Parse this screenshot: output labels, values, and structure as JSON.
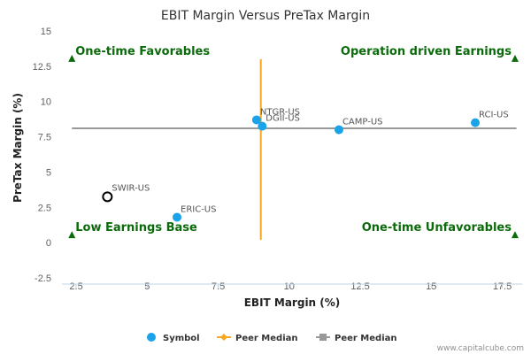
{
  "chart_data": {
    "type": "scatter",
    "title": "EBIT Margin Versus PreTax Margin",
    "xlabel": "EBIT Margin (%)",
    "ylabel": "PreTax Margin (%)",
    "xlim": [
      2.0,
      18.2
    ],
    "ylim": [
      -2.5,
      15
    ],
    "xticks": [
      "2.5",
      "5",
      "7.5",
      "10",
      "12.5",
      "15",
      "17.5"
    ],
    "yticks": [
      "-2.5",
      "0",
      "2.5",
      "5",
      "7.5",
      "10",
      "12.5",
      "15"
    ],
    "grid": false,
    "series": [
      {
        "name": "Symbol",
        "color": "#1aa3e8",
        "points": [
          {
            "label": "NTGR-US",
            "x": 8.85,
            "y": 8.7
          },
          {
            "label": "DGII-US",
            "x": 9.05,
            "y": 8.25
          },
          {
            "label": "CAMP-US",
            "x": 11.75,
            "y": 8.0
          },
          {
            "label": "RCI-US",
            "x": 16.55,
            "y": 8.5
          },
          {
            "label": "ERIC-US",
            "x": 6.05,
            "y": 1.8
          }
        ]
      },
      {
        "name": "Peer Median",
        "color": "#f5a623",
        "orientation": "vertical",
        "x": 9.0,
        "y_range": [
          0.2,
          13.0
        ]
      },
      {
        "name": "Peer Median",
        "color": "#999999",
        "orientation": "horizontal",
        "y": 8.1,
        "x_range": [
          2.35,
          18.0
        ]
      }
    ],
    "highlight": {
      "label": "SWIR-US",
      "x": 3.6,
      "y": 3.25
    },
    "quadrants": [
      {
        "text": "One-time Favorables",
        "marker_x": 2.35,
        "marker_y": 13.0,
        "align": "left"
      },
      {
        "text": "Operation driven Earnings",
        "marker_x": 17.95,
        "marker_y": 13.0,
        "align": "right"
      },
      {
        "text": "Low Earnings Base",
        "marker_x": 2.35,
        "marker_y": 0.5,
        "align": "left"
      },
      {
        "text": "One-time Unfavorables",
        "marker_x": 17.95,
        "marker_y": 0.5,
        "align": "right"
      }
    ],
    "quadrant_color": "#0b6b0b",
    "legend_position": "bottom-center"
  },
  "credit": "www.capitalcube.com"
}
